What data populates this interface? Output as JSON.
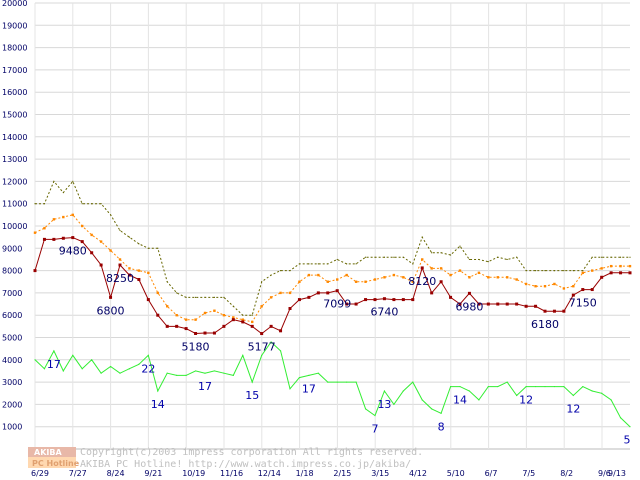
{
  "chart_data": {
    "type": "line",
    "y_ticks": [
      "1000",
      "2000",
      "3000",
      "4000",
      "5000",
      "6000",
      "7000",
      "8000",
      "9000",
      "10000",
      "11000",
      "12000",
      "13000",
      "14000",
      "15000",
      "16000",
      "17000",
      "18000",
      "19000",
      "20000"
    ],
    "ylim": [
      0,
      20000
    ],
    "x_labels": [
      "6/29",
      "7/27",
      "8/24",
      "9/21",
      "10/19",
      "11/16",
      "12/14",
      "1/18",
      "2/15",
      "3/15",
      "4/12",
      "5/10",
      "6/7",
      "7/5",
      "8/2",
      "9/6",
      "9/13"
    ],
    "grid": true,
    "series": [
      {
        "key": "max",
        "color": "#666600",
        "dashed": true,
        "values": [
          11000,
          11000,
          12000,
          11500,
          12000,
          11000,
          11000,
          11000,
          10500,
          9800,
          9500,
          9200,
          9000,
          9000,
          7500,
          7000,
          6800,
          6800,
          6800,
          6800,
          6800,
          6400,
          6000,
          6000,
          7500,
          7800,
          8000,
          8000,
          8300,
          8300,
          8300,
          8300,
          8500,
          8300,
          8300,
          8600,
          8600,
          8600,
          8600,
          8600,
          8300,
          9500,
          8800,
          8800,
          8700,
          9100,
          8500,
          8500,
          8400,
          8600,
          8500,
          8600,
          8000,
          8000,
          8000,
          8000,
          8000,
          8000,
          8000,
          8600,
          8600,
          8600,
          8600,
          8600
        ]
      },
      {
        "key": "average",
        "color": "#ff8800",
        "dashed": true,
        "values": [
          9700,
          9900,
          10300,
          10400,
          10500,
          10000,
          9600,
          9300,
          8900,
          8500,
          8100,
          8000,
          7900,
          7000,
          6400,
          6000,
          5800,
          5800,
          6100,
          6200,
          6000,
          5900,
          5800,
          5700,
          6400,
          6800,
          7000,
          7000,
          7500,
          7800,
          7800,
          7500,
          7600,
          7800,
          7500,
          7500,
          7600,
          7700,
          7800,
          7700,
          7500,
          8500,
          8100,
          8100,
          7800,
          8000,
          7700,
          7900,
          7700,
          7700,
          7700,
          7600,
          7400,
          7300,
          7300,
          7400,
          7200,
          7300,
          7900,
          8000,
          8100,
          8200,
          8200,
          8200
        ]
      },
      {
        "key": "min",
        "color": "#990000",
        "dashed": false,
        "values": [
          8000,
          9400,
          9400,
          9450,
          9480,
          9300,
          8800,
          8250,
          6800,
          8250,
          7800,
          7600,
          6700,
          6000,
          5500,
          5500,
          5400,
          5180,
          5200,
          5200,
          5500,
          5800,
          5700,
          5500,
          5177,
          5500,
          5300,
          6300,
          6700,
          6800,
          7000,
          7000,
          7099,
          6500,
          6500,
          6700,
          6700,
          6740,
          6700,
          6700,
          6700,
          8120,
          7000,
          7500,
          6800,
          6500,
          6980,
          6500,
          6500,
          6500,
          6500,
          6500,
          6400,
          6400,
          6180,
          6180,
          6180,
          6900,
          7150,
          7150,
          7700,
          7900,
          7900,
          7900
        ]
      },
      {
        "key": "count",
        "color": "#33ee33",
        "dashed": false,
        "values": [
          4000,
          3600,
          4400,
          3500,
          4200,
          3600,
          4000,
          3400,
          3700,
          3400,
          3600,
          3800,
          4200,
          2600,
          3400,
          3300,
          3300,
          3500,
          3400,
          3500,
          3400,
          3300,
          4200,
          3000,
          4200,
          4800,
          4400,
          2700,
          3200,
          3300,
          3400,
          3000,
          3000,
          3000,
          3000,
          1800,
          1500,
          2600,
          2000,
          2600,
          3000,
          2200,
          1800,
          1600,
          2800,
          2800,
          2600,
          2200,
          2800,
          2800,
          3000,
          2400,
          2800,
          2800,
          2800,
          2800,
          2800,
          2400,
          2800,
          2600,
          2500,
          2200,
          1400,
          1000
        ]
      }
    ],
    "data_labels": [
      {
        "series": "min",
        "index": 4,
        "text": "9480"
      },
      {
        "series": "min",
        "index": 8,
        "text": "6800"
      },
      {
        "series": "min",
        "index": 9,
        "text": "8250"
      },
      {
        "series": "min",
        "index": 17,
        "text": "5180"
      },
      {
        "series": "min",
        "index": 24,
        "text": "5177"
      },
      {
        "series": "min",
        "index": 32,
        "text": "7099"
      },
      {
        "series": "min",
        "index": 37,
        "text": "6740"
      },
      {
        "series": "min",
        "index": 41,
        "text": "8120"
      },
      {
        "series": "min",
        "index": 46,
        "text": "6980"
      },
      {
        "series": "min",
        "index": 54,
        "text": "6180"
      },
      {
        "series": "min",
        "index": 58,
        "text": "7150"
      },
      {
        "series": "count",
        "index": 2,
        "text": "17"
      },
      {
        "series": "count",
        "index": 12,
        "text": "22"
      },
      {
        "series": "count",
        "index": 13,
        "text": "14"
      },
      {
        "series": "count",
        "index": 18,
        "text": "17"
      },
      {
        "series": "count",
        "index": 23,
        "text": "15"
      },
      {
        "series": "count",
        "index": 29,
        "text": "17"
      },
      {
        "series": "count",
        "index": 36,
        "text": "7"
      },
      {
        "series": "count",
        "index": 37,
        "text": "13"
      },
      {
        "series": "count",
        "index": 43,
        "text": "8"
      },
      {
        "series": "count",
        "index": 45,
        "text": "14"
      },
      {
        "series": "count",
        "index": 52,
        "text": "12"
      },
      {
        "series": "count",
        "index": 57,
        "text": "12"
      },
      {
        "series": "count",
        "index": 63,
        "text": "5"
      }
    ]
  },
  "watermark": {
    "line1": "Copyright(c)2003 impress corporation All rights reserved.",
    "line2": "AKIBA PC Hotline!  http://www.watch.impress.co.jp/akiba/"
  },
  "logo": {
    "top_text": "AKIBA",
    "bottom_text": "PC Hotline"
  }
}
